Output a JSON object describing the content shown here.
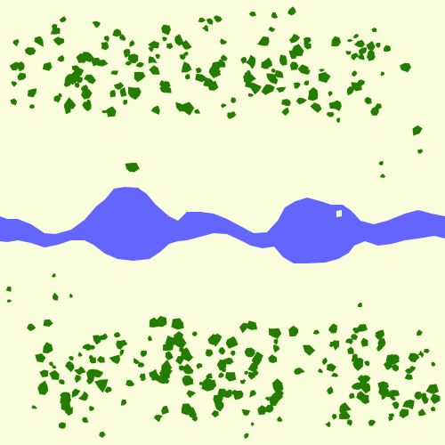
{
  "scene": {
    "description_free": true,
    "colors": {
      "ground": "#FAFDDB",
      "vegetation": "#247C00",
      "water": "#6464FF"
    },
    "layers": {
      "top_band": {
        "kind": "vegetation-cluster"
      },
      "river": {
        "kind": "water"
      },
      "bottom_band": {
        "kind": "vegetation-cluster"
      }
    }
  }
}
